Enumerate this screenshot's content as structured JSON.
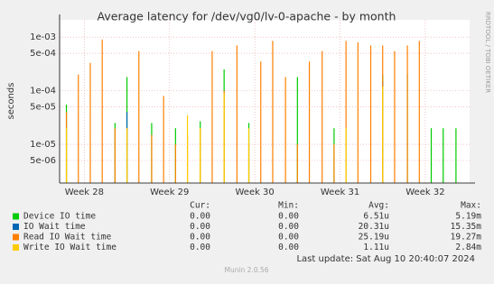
{
  "chart_data": {
    "type": "spike",
    "title": "Average latency for /dev/vg0/lv-0-apache - by month",
    "y_label": "seconds",
    "log_y": true,
    "ylim": [
      1.9e-06,
      0.0021
    ],
    "yticks": [
      {
        "value": 5e-06,
        "label": "5e-06"
      },
      {
        "value": 1e-05,
        "label": "1e-05"
      },
      {
        "value": 5e-05,
        "label": "5e-05"
      },
      {
        "value": 0.0001,
        "label": "1e-04"
      },
      {
        "value": 0.0005,
        "label": "5e-04"
      },
      {
        "value": 0.001,
        "label": "1e-03"
      }
    ],
    "xlim": [
      27.71,
      32.52
    ],
    "xticks": [
      {
        "value": 28,
        "label": "Week 28"
      },
      {
        "value": 29,
        "label": "Week 29"
      },
      {
        "value": 30,
        "label": "Week 30"
      },
      {
        "value": 31,
        "label": "Week 31"
      },
      {
        "value": 32,
        "label": "Week 32"
      }
    ],
    "x": [
      27.79,
      27.93,
      28.07,
      28.21,
      28.36,
      28.5,
      28.64,
      28.79,
      28.93,
      29.07,
      29.21,
      29.36,
      29.5,
      29.64,
      29.79,
      29.93,
      30.07,
      30.21,
      30.36,
      30.5,
      30.64,
      30.79,
      30.93,
      31.07,
      31.21,
      31.36,
      31.5,
      31.64,
      31.79,
      31.93,
      32.07,
      32.21,
      32.36,
      32.5
    ],
    "stat_headers": [
      "Cur:",
      "Min:",
      "Avg:",
      "Max:"
    ],
    "series": [
      {
        "name": "Device IO time",
        "color": "#00cc00",
        "stats": [
          "0.00",
          "0.00",
          "6.51u",
          "5.19m"
        ],
        "values": [
          5.5e-05,
          null,
          null,
          null,
          2.5e-05,
          0.00018,
          null,
          2.5e-05,
          null,
          2e-05,
          null,
          2.7e-05,
          null,
          0.00025,
          null,
          2.5e-05,
          null,
          null,
          null,
          0.00018,
          null,
          null,
          2e-05,
          null,
          null,
          null,
          0.0002,
          null,
          0.0002,
          null,
          2e-05,
          2e-05,
          2e-05,
          null
        ]
      },
      {
        "name": "IO Wait time",
        "color": "#0066b3",
        "stats": [
          "0.00",
          "0.00",
          "20.31u",
          "15.35m"
        ],
        "values": [
          null,
          null,
          null,
          null,
          null,
          4e-05,
          null,
          null,
          null,
          null,
          null,
          null,
          null,
          null,
          null,
          null,
          null,
          null,
          null,
          null,
          null,
          null,
          null,
          null,
          null,
          null,
          0.00015,
          null,
          null,
          null,
          null,
          null,
          null,
          null
        ]
      },
      {
        "name": "Read IO Wait time",
        "color": "#ff8000",
        "stats": [
          "0.00",
          "0.00",
          "25.19u",
          "19.27m"
        ],
        "values": [
          4e-05,
          0.0002,
          0.00033,
          0.0009,
          2e-05,
          2e-05,
          0.00055,
          1.5e-05,
          8e-05,
          1e-05,
          1.5e-05,
          2e-05,
          0.00055,
          0.0001,
          0.0007,
          1e-05,
          0.00035,
          0.00085,
          0.00018,
          1e-05,
          0.00035,
          0.00055,
          1e-05,
          0.00085,
          0.0008,
          0.0007,
          0.0007,
          0.00055,
          0.0007,
          0.00085,
          null,
          null,
          null,
          null
        ]
      },
      {
        "name": "Write IO Wait time",
        "color": "#ffcc00",
        "stats": [
          "0.00",
          "0.00",
          "1.11u",
          "2.84m"
        ],
        "values": [
          2e-05,
          null,
          null,
          null,
          null,
          2e-05,
          null,
          null,
          null,
          null,
          3.5e-05,
          2e-05,
          null,
          9e-05,
          null,
          2e-05,
          null,
          null,
          null,
          null,
          null,
          null,
          null,
          2e-05,
          null,
          null,
          0.00012,
          null,
          null,
          null,
          null,
          null,
          null,
          null
        ]
      }
    ],
    "footer": "Last update: Sat Aug 10 20:40:07 2024",
    "version": "Munin 2.0.56",
    "watermark": "RRDTOOL / TOBI OETIKER"
  }
}
